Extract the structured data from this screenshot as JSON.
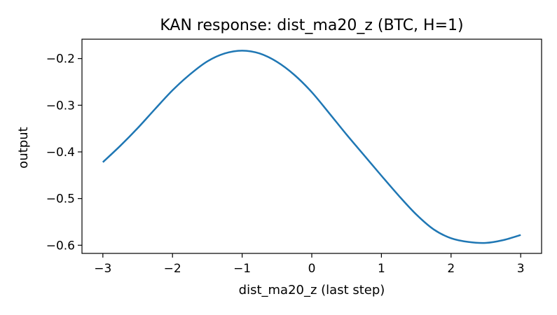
{
  "chart_data": {
    "type": "line",
    "title": "KAN response: dist_ma20_z (BTC, H=1)",
    "xlabel": "dist_ma20_z (last step)",
    "ylabel": "output",
    "xlim": [
      -3.3,
      3.3
    ],
    "ylim": [
      -0.6175,
      -0.1585
    ],
    "xticks": [
      -3,
      -2,
      -1,
      0,
      1,
      2,
      3
    ],
    "xtick_labels": [
      "−3",
      "−2",
      "−1",
      "0",
      "1",
      "2",
      "3"
    ],
    "yticks": [
      -0.2,
      -0.3,
      -0.4,
      -0.5,
      -0.6
    ],
    "ytick_labels": [
      "−0.2",
      "−0.3",
      "−0.4",
      "−0.5",
      "−0.6"
    ],
    "grid": false,
    "series": [
      {
        "color": "#1f77b4",
        "x": [
          -3.0,
          -2.75,
          -2.5,
          -2.25,
          -2.0,
          -1.75,
          -1.5,
          -1.25,
          -1.0,
          -0.75,
          -0.5,
          -0.25,
          0.0,
          0.25,
          0.5,
          0.75,
          1.0,
          1.25,
          1.5,
          1.75,
          2.0,
          2.25,
          2.5,
          2.75,
          3.0
        ],
        "y": [
          -0.422,
          -0.387,
          -0.349,
          -0.308,
          -0.268,
          -0.234,
          -0.206,
          -0.189,
          -0.183,
          -0.189,
          -0.207,
          -0.235,
          -0.272,
          -0.317,
          -0.363,
          -0.407,
          -0.451,
          -0.494,
          -0.534,
          -0.566,
          -0.585,
          -0.593,
          -0.595,
          -0.589,
          -0.578
        ]
      }
    ]
  }
}
